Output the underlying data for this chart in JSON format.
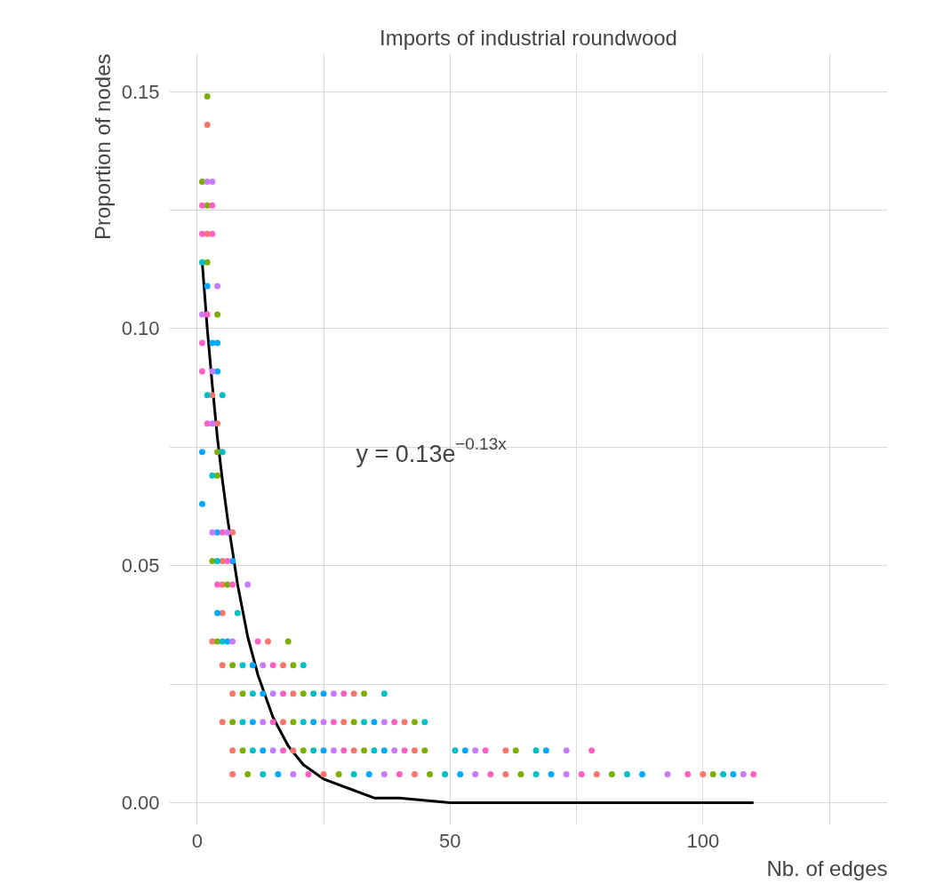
{
  "chart_data": {
    "type": "scatter",
    "title": "Imports of industrial roundwood",
    "xlabel": "Nb. of edges",
    "ylabel": "Proportion of nodes",
    "xlim": [
      -5.5,
      136.5
    ],
    "ylim": [
      -0.0045,
      0.158
    ],
    "xticks": [
      0,
      {
        "value": 25,
        "label": null
      },
      50,
      {
        "value": 75,
        "label": null
      },
      100,
      {
        "value": 125,
        "label": null
      }
    ],
    "yticks": [
      {
        "value": 0,
        "label": "0.00"
      },
      {
        "value": 0.025,
        "label": null
      },
      {
        "value": 0.05,
        "label": "0.05"
      },
      {
        "value": 0.075,
        "label": null
      },
      {
        "value": 0.1,
        "label": "0.10"
      },
      {
        "value": 0.125,
        "label": null
      },
      {
        "value": 0.15,
        "label": "0.15"
      }
    ],
    "grid": true,
    "annotations": [
      "y = 0.13e$^{−0.13x}$"
    ],
    "series": [
      {
        "color": "#F8766D",
        "marker": "circle",
        "x": [
          7,
          25,
          43,
          61,
          79,
          100,
          7,
          19,
          31,
          43,
          61,
          5,
          17,
          29,
          41,
          7,
          19,
          31,
          5,
          17,
          3,
          14,
          5,
          5,
          5,
          7,
          4,
          3,
          2,
          2
        ],
        "values": [
          0.006,
          0.006,
          0.006,
          0.006,
          0.006,
          0.006,
          0.011,
          0.011,
          0.011,
          0.011,
          0.011,
          0.017,
          0.017,
          0.017,
          0.017,
          0.023,
          0.023,
          0.023,
          0.029,
          0.029,
          0.034,
          0.034,
          0.04,
          0.046,
          0.051,
          0.057,
          0.08,
          0.086,
          0.12,
          0.143
        ]
      },
      {
        "color": "#7CAE00",
        "marker": "circle",
        "x": [
          10,
          28,
          46,
          64,
          82,
          102,
          9,
          21,
          33,
          45,
          63,
          7,
          19,
          31,
          43,
          9,
          21,
          33,
          7,
          19,
          4,
          18,
          6,
          3,
          4,
          4,
          4,
          2,
          2,
          1,
          2
        ],
        "values": [
          0.006,
          0.006,
          0.006,
          0.006,
          0.006,
          0.006,
          0.011,
          0.011,
          0.011,
          0.011,
          0.011,
          0.017,
          0.017,
          0.017,
          0.017,
          0.023,
          0.023,
          0.023,
          0.029,
          0.029,
          0.034,
          0.034,
          0.046,
          0.051,
          0.069,
          0.074,
          0.103,
          0.114,
          0.126,
          0.131,
          0.149
        ]
      },
      {
        "color": "#00BFC4",
        "marker": "circle",
        "x": [
          13,
          31,
          49,
          67,
          85,
          104,
          11,
          23,
          35,
          51,
          67,
          9,
          21,
          33,
          45,
          11,
          23,
          37,
          9,
          21,
          5,
          8,
          4,
          3,
          5,
          2,
          5,
          1
        ],
        "values": [
          0.006,
          0.006,
          0.006,
          0.006,
          0.006,
          0.006,
          0.011,
          0.011,
          0.011,
          0.011,
          0.011,
          0.017,
          0.017,
          0.017,
          0.017,
          0.023,
          0.023,
          0.023,
          0.029,
          0.029,
          0.034,
          0.04,
          0.051,
          0.069,
          0.074,
          0.086,
          0.086,
          0.114
        ]
      },
      {
        "color": "#00A9FF",
        "marker": "circle",
        "x": [
          16,
          34,
          52,
          70,
          88,
          106,
          13,
          25,
          37,
          53,
          69,
          11,
          23,
          35,
          13,
          25,
          11,
          6,
          4,
          7,
          4,
          1,
          1,
          4,
          3,
          4,
          2
        ],
        "values": [
          0.006,
          0.006,
          0.006,
          0.006,
          0.006,
          0.006,
          0.011,
          0.011,
          0.011,
          0.011,
          0.011,
          0.017,
          0.017,
          0.017,
          0.023,
          0.023,
          0.029,
          0.034,
          0.04,
          0.051,
          0.057,
          0.063,
          0.074,
          0.091,
          0.097,
          0.097,
          0.109
        ]
      },
      {
        "color": "#C77CFF",
        "marker": "circle",
        "x": [
          19,
          37,
          55,
          73,
          93,
          108,
          15,
          27,
          39,
          55,
          73,
          13,
          25,
          37,
          15,
          27,
          13,
          7,
          10,
          3,
          6,
          3,
          3,
          1,
          4,
          2,
          3
        ],
        "values": [
          0.006,
          0.006,
          0.006,
          0.006,
          0.006,
          0.006,
          0.011,
          0.011,
          0.011,
          0.011,
          0.011,
          0.017,
          0.017,
          0.017,
          0.023,
          0.023,
          0.029,
          0.034,
          0.046,
          0.057,
          0.057,
          0.08,
          0.091,
          0.103,
          0.109,
          0.131,
          0.131
        ]
      },
      {
        "color": "#FF61C3",
        "marker": "circle",
        "x": [
          22,
          40,
          58,
          76,
          97,
          110,
          17,
          29,
          41,
          57,
          78,
          15,
          27,
          39,
          17,
          29,
          15,
          12,
          4,
          7,
          6,
          5,
          2,
          1,
          1,
          2,
          1,
          3,
          1,
          3
        ],
        "values": [
          0.006,
          0.006,
          0.006,
          0.006,
          0.006,
          0.006,
          0.011,
          0.011,
          0.011,
          0.011,
          0.011,
          0.017,
          0.017,
          0.017,
          0.023,
          0.023,
          0.029,
          0.034,
          0.046,
          0.046,
          0.051,
          0.057,
          0.08,
          0.091,
          0.097,
          0.103,
          0.12,
          0.12,
          0.126,
          0.126
        ]
      },
      {
        "type": "line",
        "color": "#000000",
        "marker": "none",
        "x": [
          1,
          2,
          3,
          4,
          5,
          6,
          8,
          10,
          12,
          15,
          18,
          21,
          25,
          30,
          35,
          40,
          50,
          60,
          80,
          110
        ],
        "values": [
          0.114,
          0.1,
          0.088,
          0.077,
          0.068,
          0.06,
          0.046,
          0.035,
          0.027,
          0.018,
          0.012,
          0.008,
          0.005,
          0.003,
          0.001,
          0.001,
          0.0,
          0.0,
          0.0,
          0.0
        ]
      }
    ]
  }
}
